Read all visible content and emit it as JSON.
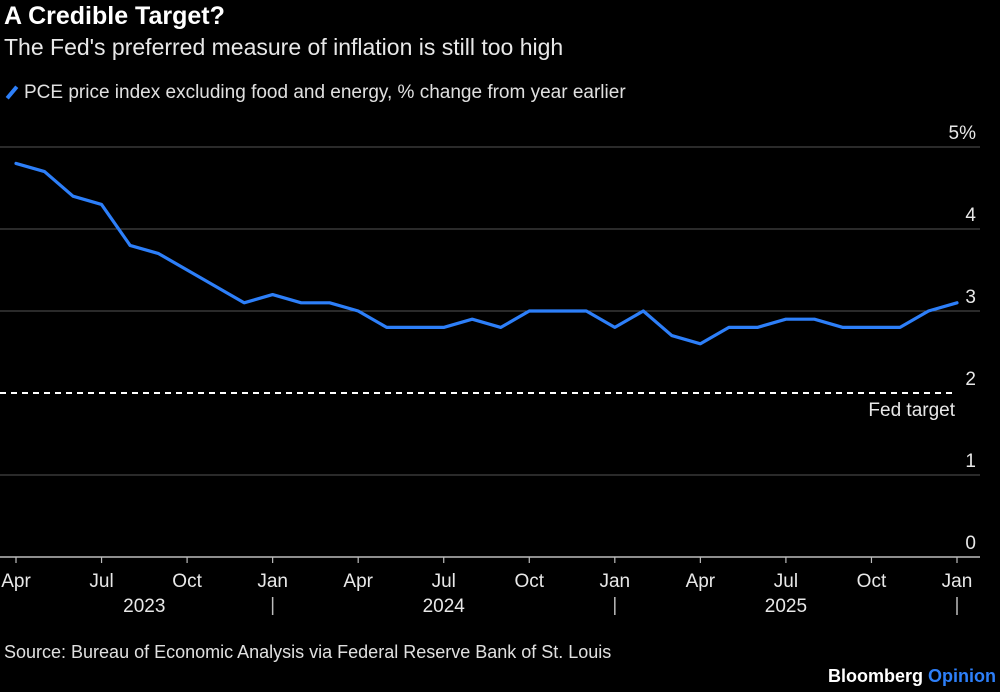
{
  "chart_data": {
    "type": "line",
    "title": "A Credible Target?",
    "subtitle": "The Fed's preferred measure of inflation is still too high",
    "legend": "PCE price index excluding food and energy, % change from year earlier",
    "series_color": "#2d7ff9",
    "x_months": [
      "2023-04",
      "2023-05",
      "2023-06",
      "2023-07",
      "2023-08",
      "2023-09",
      "2023-10",
      "2023-11",
      "2023-12",
      "2024-01",
      "2024-02",
      "2024-03",
      "2024-04",
      "2024-05",
      "2024-06",
      "2024-07",
      "2024-08",
      "2024-09",
      "2024-10",
      "2024-11",
      "2024-12",
      "2025-01",
      "2025-02",
      "2025-03",
      "2025-04",
      "2025-05",
      "2025-06",
      "2025-07",
      "2025-08",
      "2025-09",
      "2025-10",
      "2025-11",
      "2025-12",
      "2026-01"
    ],
    "values": [
      4.8,
      4.7,
      4.4,
      4.3,
      3.8,
      3.7,
      3.5,
      3.3,
      3.1,
      3.2,
      3.1,
      3.1,
      3.0,
      2.8,
      2.8,
      2.8,
      2.9,
      2.8,
      3.0,
      3.0,
      3.0,
      2.8,
      3.0,
      2.7,
      2.6,
      2.8,
      2.8,
      2.9,
      2.9,
      2.8,
      2.8,
      2.8,
      3.0,
      3.1
    ],
    "ylim": [
      0,
      5
    ],
    "y_ticks": [
      {
        "value": 5,
        "label": "5%"
      },
      {
        "value": 4,
        "label": "4"
      },
      {
        "value": 3,
        "label": "3"
      },
      {
        "value": 2,
        "label": "2"
      },
      {
        "value": 1,
        "label": "1"
      },
      {
        "value": 0,
        "label": "0"
      }
    ],
    "x_ticks": [
      {
        "index": 0,
        "label": "Apr"
      },
      {
        "index": 3,
        "label": "Jul"
      },
      {
        "index": 6,
        "label": "Oct"
      },
      {
        "index": 9,
        "label": "Jan"
      },
      {
        "index": 12,
        "label": "Apr"
      },
      {
        "index": 15,
        "label": "Jul"
      },
      {
        "index": 18,
        "label": "Oct"
      },
      {
        "index": 21,
        "label": "Jan"
      },
      {
        "index": 24,
        "label": "Apr"
      },
      {
        "index": 27,
        "label": "Jul"
      },
      {
        "index": 30,
        "label": "Oct"
      },
      {
        "index": 33,
        "label": "Jan"
      }
    ],
    "years": [
      {
        "center_index": 4.5,
        "label": "2023"
      },
      {
        "center_index": 15,
        "label": "2024"
      },
      {
        "center_index": 27,
        "label": "2025"
      }
    ],
    "year_dividers": [
      9,
      21,
      33
    ],
    "reference_line": {
      "value": 2,
      "label": "Fed target",
      "style": "dashed"
    },
    "grid": true
  },
  "footer": {
    "source": "Source: Bureau of Economic Analysis via Federal Reserve Bank of St. Louis",
    "brand_main": "Bloomberg",
    "brand_accent": "Opinion"
  }
}
